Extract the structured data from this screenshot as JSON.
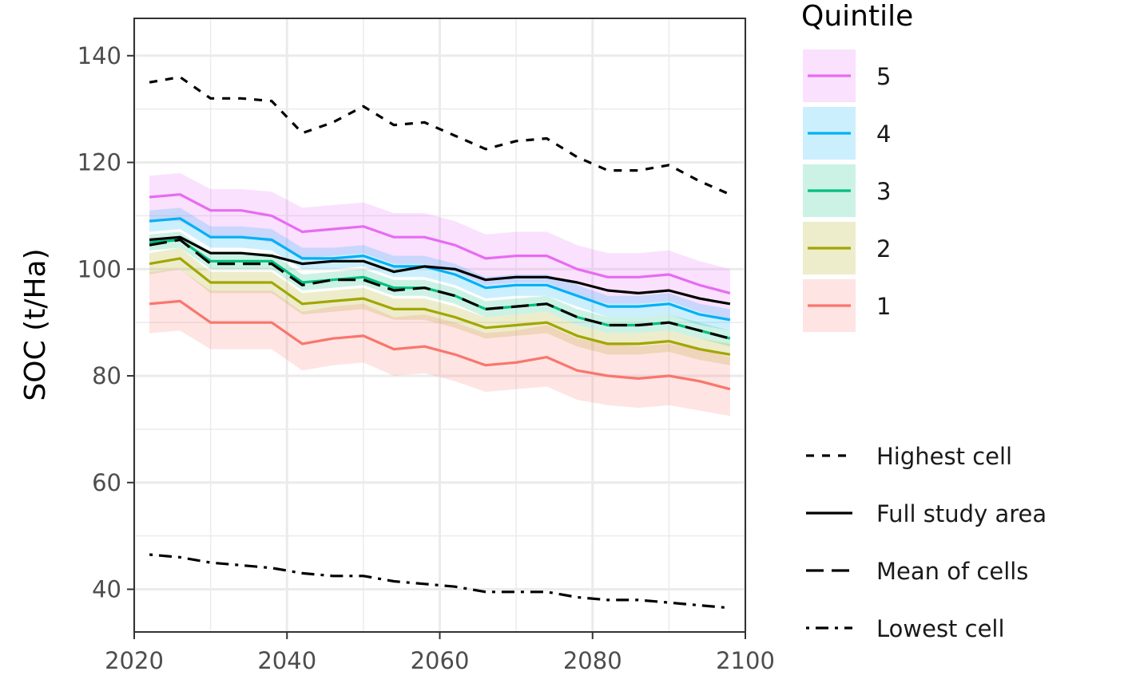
{
  "chart_data": {
    "type": "line",
    "title": "",
    "xlabel": "",
    "ylabel": "SOC (t/Ha)",
    "xlim": [
      2020,
      2100
    ],
    "ylim": [
      32,
      147
    ],
    "x_ticks": [
      2020,
      2040,
      2060,
      2080,
      2100
    ],
    "y_ticks": [
      40,
      60,
      80,
      100,
      120,
      140
    ],
    "grid": true,
    "legend_position": "right",
    "color_legend": {
      "title": "Quintile",
      "entries": [
        {
          "label": "5",
          "color": "#E76BF3"
        },
        {
          "label": "4",
          "color": "#00B0F6"
        },
        {
          "label": "3",
          "color": "#00BF7D"
        },
        {
          "label": "2",
          "color": "#A3A500"
        },
        {
          "label": "1",
          "color": "#F8766D"
        }
      ]
    },
    "linetype_legend": [
      {
        "label": "Highest cell",
        "dash": "dashed"
      },
      {
        "label": "Full study area",
        "dash": "solid"
      },
      {
        "label": "Mean of cells",
        "dash": "longdash"
      },
      {
        "label": "Lowest cell",
        "dash": "dotdash"
      }
    ],
    "x": [
      2022,
      2026,
      2030,
      2034,
      2038,
      2042,
      2046,
      2050,
      2054,
      2058,
      2062,
      2066,
      2070,
      2074,
      2078,
      2082,
      2086,
      2090,
      2094,
      2098
    ],
    "series": [
      {
        "name": "5",
        "group": "quintile",
        "color": "#E76BF3",
        "values": [
          113.5,
          114,
          111,
          111,
          110,
          107,
          107.5,
          108,
          106,
          106,
          104.5,
          102,
          102.5,
          102.5,
          100,
          98.5,
          98.5,
          99,
          97,
          95.5
        ],
        "lower": [
          109,
          109,
          106,
          106,
          105,
          102,
          102.5,
          103,
          101,
          101,
          99.5,
          97,
          97.5,
          97.5,
          95,
          93.5,
          93.5,
          94,
          92,
          90.5
        ],
        "upper": [
          117.5,
          118,
          115,
          115,
          114.5,
          111.5,
          112,
          112.5,
          110.5,
          110.5,
          109,
          106.5,
          107,
          107,
          104.5,
          103,
          103,
          103.5,
          101.5,
          100
        ]
      },
      {
        "name": "4",
        "group": "quintile",
        "color": "#00B0F6",
        "values": [
          109,
          109.5,
          106,
          106,
          105.5,
          102,
          102,
          102.5,
          100.5,
          100.5,
          99,
          96.5,
          97,
          97,
          95,
          93,
          93,
          93.5,
          91.5,
          90.5
        ],
        "lower": [
          107,
          107.5,
          104,
          104,
          103.5,
          100,
          100,
          100.5,
          98.5,
          98.5,
          97,
          94.5,
          95,
          95,
          93,
          91,
          91,
          91.5,
          89.5,
          88.5
        ],
        "upper": [
          111,
          111.5,
          108,
          108,
          107.5,
          104,
          104,
          104.5,
          102.5,
          102.5,
          101,
          98.5,
          99,
          99,
          97,
          95,
          95,
          95.5,
          93.5,
          92.5
        ]
      },
      {
        "name": "3",
        "group": "quintile",
        "color": "#00BF7D",
        "values": [
          105,
          105.5,
          101.5,
          101.5,
          101.5,
          97.5,
          98,
          98.5,
          96.5,
          96.5,
          95,
          92.5,
          93,
          93.5,
          91,
          89.5,
          89.5,
          90,
          88.5,
          87
        ],
        "lower": [
          103.5,
          104,
          100,
          100,
          100,
          96,
          96.5,
          97,
          95,
          95,
          93.5,
          91,
          91.5,
          92,
          89.5,
          88,
          88,
          88.5,
          87,
          85.5
        ],
        "upper": [
          106.5,
          107,
          103,
          103,
          103,
          99,
          99.5,
          100,
          98,
          98,
          96.5,
          94,
          94.5,
          95,
          92.5,
          91,
          91,
          91.5,
          90,
          88.5
        ]
      },
      {
        "name": "2",
        "group": "quintile",
        "color": "#A3A500",
        "values": [
          101,
          102,
          97.5,
          97.5,
          97.5,
          93.5,
          94,
          94.5,
          92.5,
          92.5,
          91,
          89,
          89.5,
          90,
          87.5,
          86,
          86,
          86.5,
          85,
          84
        ],
        "lower": [
          99,
          100,
          95.5,
          95.5,
          95.5,
          91.5,
          92,
          92.5,
          90.5,
          90.5,
          89,
          87,
          87.5,
          88,
          85.5,
          84,
          84,
          84.5,
          83,
          82
        ],
        "upper": [
          103,
          104,
          99.5,
          99.5,
          99.5,
          95.5,
          96,
          96.5,
          94.5,
          94.5,
          93,
          91,
          91.5,
          92,
          89.5,
          88,
          88,
          88.5,
          87,
          86
        ]
      },
      {
        "name": "1",
        "group": "quintile",
        "color": "#F8766D",
        "values": [
          93.5,
          94,
          90,
          90,
          90,
          86,
          87,
          87.5,
          85,
          85.5,
          84,
          82,
          82.5,
          83.5,
          81,
          80,
          79.5,
          80,
          79,
          77.5
        ],
        "lower": [
          88,
          88.5,
          85,
          85,
          85,
          81,
          82,
          82.5,
          80,
          80.5,
          79,
          77,
          77.5,
          78,
          75.5,
          74.5,
          74,
          74.5,
          73.5,
          72.5
        ],
        "upper": [
          99.5,
          100,
          96,
          96,
          96,
          92,
          93,
          93.5,
          91,
          91.5,
          90,
          88,
          88.5,
          89.5,
          87,
          86,
          85.5,
          86,
          85,
          83.5
        ]
      },
      {
        "name": "Full study area",
        "group": "linetype",
        "color": "#000000",
        "dash": "solid",
        "values": [
          105.5,
          106,
          103,
          103,
          102.5,
          101,
          101.5,
          101.5,
          99.5,
          100.5,
          100,
          98,
          98.5,
          98.5,
          97.5,
          96,
          95.5,
          96,
          94.5,
          93.5
        ]
      },
      {
        "name": "Mean of cells",
        "group": "linetype",
        "color": "#000000",
        "dash": "longdash",
        "values": [
          104.5,
          105.5,
          101,
          101,
          101,
          97,
          98,
          98,
          96,
          96.5,
          95,
          92.5,
          93,
          93.5,
          91,
          89.5,
          89.5,
          90,
          88.5,
          87
        ]
      },
      {
        "name": "Highest cell",
        "group": "linetype",
        "color": "#000000",
        "dash": "dashed",
        "values": [
          135,
          136,
          132,
          132,
          131.5,
          125.5,
          127.5,
          130.5,
          127,
          127.5,
          125,
          122.5,
          124,
          124.5,
          121,
          118.5,
          118.5,
          119.5,
          116.5,
          114
        ]
      },
      {
        "name": "Lowest cell",
        "group": "linetype",
        "color": "#000000",
        "dash": "dotdash",
        "values": [
          46.5,
          46,
          45,
          44.5,
          44,
          43,
          42.5,
          42.5,
          41.5,
          41,
          40.5,
          39.5,
          39.5,
          39.5,
          38.5,
          38,
          38,
          37.5,
          37,
          36.5
        ]
      }
    ]
  }
}
